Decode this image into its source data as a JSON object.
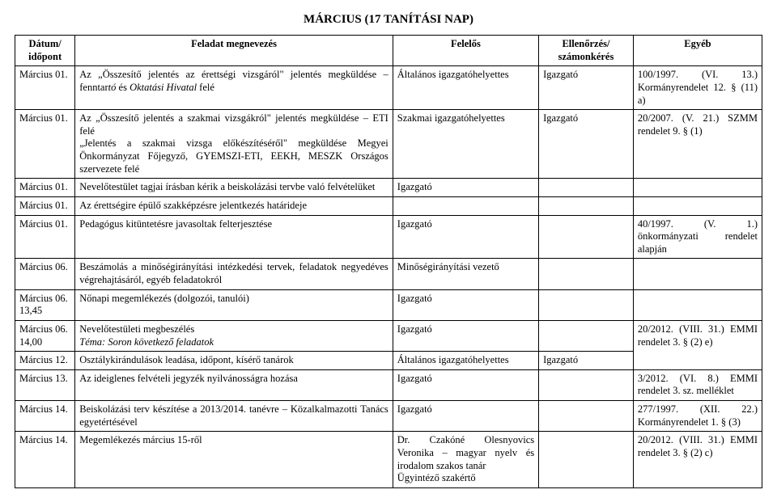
{
  "title_main": "MÁRCIUS (17 ",
  "title_rest": "TANÍTÁSI NAP)",
  "headers": {
    "date": "Dátum/ időpont",
    "task": "Feladat megnevezés",
    "resp": "Felelős",
    "check": "Ellenőrzés/ számonkérés",
    "other": "Egyéb"
  },
  "rows": [
    {
      "date": "Március 01.",
      "task_pre": "Az „Összesítő jelentés az érettségi vizsgáról\" jelentés megküldése – fenntar",
      "task_it": "tó",
      "task_post": " és ",
      "task_it2": "Oktatási Hivatal",
      "task_tail": " felé",
      "resp": "Általános igazgatóhelyettes",
      "check": "Igazgató",
      "other": "100/1997. (VI. 13.) Kormányrendelet 12. § (11) a)"
    },
    {
      "date": "Március 01.",
      "task": "Az „Összesítő jelentés a szakmai vizsgákról\" jelentés megküldése – ETI felé\n„Jelentés a szakmai vizsga előkészítéséről\" megküldése Megyei Önkormányzat Főjegyző, GYEMSZI-ETI, EEKH, MESZK Országos szervezete felé",
      "resp": "Szakmai igazgatóhelyettes",
      "check": "Igazgató",
      "other": "20/2007. (V. 21.) SZMM rendelet 9. § (1)"
    },
    {
      "date": "Március 01.",
      "task": "Nevelőtestület tagjai írásban kérik a beiskolázási tervbe való felvételüket",
      "resp": "Igazgató",
      "check": "",
      "other": ""
    },
    {
      "date": "Március 01.",
      "task": "Az érettségire épülő szakképzésre jelentkezés határideje",
      "resp": "",
      "check": "",
      "other": ""
    },
    {
      "date": "Március 01.",
      "task": "Pedagógus kitüntetésre javasoltak felterjesztése",
      "resp": "Igazgató",
      "check": "",
      "other": "40/1997. (V. 1.) önkormányzati rendelet alapján"
    },
    {
      "date": "Március 06.",
      "task": "Beszámolás a minőségirányítási intézkedési tervek, feladatok negyedéves végrehajtásáról, egyéb feladatokról",
      "resp": "Minőségirányítási vezető",
      "check": "",
      "other": ""
    },
    {
      "date": "Március 06. 13,45",
      "task": "Nőnapi megemlékezés (dolgozói, tanulói)",
      "resp": "Igazgató",
      "check": "",
      "other": ""
    },
    {
      "date": "Március 06. 14,00",
      "task_line1": "Nevelőtestületi megbeszélés",
      "task_line2": "Téma: Soron következő feladatok",
      "resp": "Igazgató",
      "check": "",
      "other": "20/2012. (VIII. 31.) EMMI rendelet 3. § (2) e)"
    },
    {
      "date": "Március 12.",
      "task": "Osztálykirándulások leadása, időpont, kísérő tanárok",
      "resp": "Általános igazgatóhelyettes",
      "check": "Igazgató",
      "other": ""
    },
    {
      "date": "Március 13.",
      "task": "Az ideiglenes felvételi jegyzék nyilvánosságra hozása",
      "resp": "Igazgató",
      "check": "",
      "other": "3/2012. (VI. 8.) EMMI rendelet 3. sz. melléklet"
    },
    {
      "date": "Március 14.",
      "task": "Beiskolázási terv készítése a 2013/2014. tanévre – Közalkalmazotti Tanács egyetértésével",
      "resp": "Igazgató",
      "check": "",
      "other": "277/1997. (XII. 22.) Kormányrendelet 1. § (3)"
    },
    {
      "date": "Március 14.",
      "task": "Megemlékezés március 15-ről",
      "resp": "Dr. Czakóné Olesnyovics Veronika – magyar nyelv és irodalom szakos tanár\nÜgyintéző szakértő",
      "check": "",
      "other": "20/2012. (VIII. 31.) EMMI rendelet 3. § (2) c)"
    }
  ]
}
